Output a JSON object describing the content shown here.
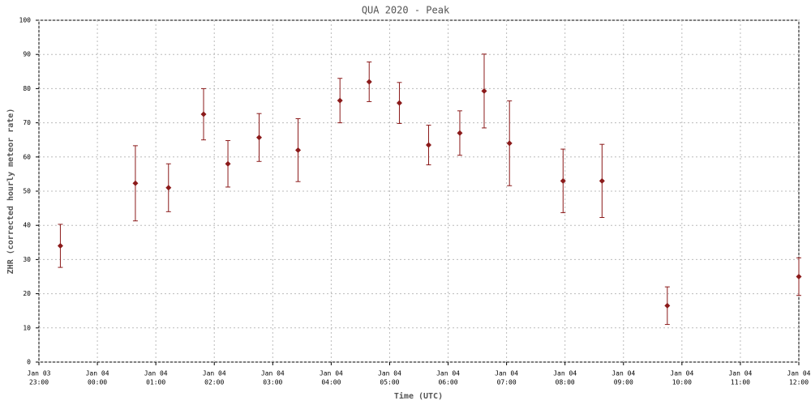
{
  "chart_data": {
    "type": "errorbar",
    "title": "QUA 2020 - Peak",
    "x_label": "Time (UTC)",
    "y_label": "ZHR (corrected hourly meteor rate)",
    "x": [
      "Jan 03 23:22",
      "Jan 04 00:39",
      "Jan 04 01:13",
      "Jan 04 01:49",
      "Jan 04 02:14",
      "Jan 04 02:46",
      "Jan 04 03:26",
      "Jan 04 04:09",
      "Jan 04 04:39",
      "Jan 04 05:10",
      "Jan 04 05:40",
      "Jan 04 06:12",
      "Jan 04 06:37",
      "Jan 04 07:03",
      "Jan 04 07:58",
      "Jan 04 08:38",
      "Jan 04 09:45",
      "Jan 04 12:00"
    ],
    "series": [
      {
        "color": "#8b1a1a",
        "values": [
          34,
          52.3,
          51,
          72.5,
          58,
          65.7,
          62,
          76.5,
          82,
          75.8,
          63.5,
          67,
          79.3,
          64,
          53,
          53,
          16.5,
          25
        ],
        "errors": [
          6.3,
          11,
          7,
          7.5,
          6.8,
          7,
          9.2,
          6.5,
          5.8,
          6,
          5.8,
          6.5,
          10.8,
          12.4,
          9.3,
          10.7,
          5.5,
          5.5
        ]
      }
    ],
    "xlim": [
      "Jan 03 23:00",
      "Jan 04 12:00"
    ],
    "xticks": [
      {
        "date": "Jan 03",
        "time": "23:00"
      },
      {
        "date": "Jan 04",
        "time": "00:00"
      },
      {
        "date": "Jan 04",
        "time": "01:00"
      },
      {
        "date": "Jan 04",
        "time": "02:00"
      },
      {
        "date": "Jan 04",
        "time": "03:00"
      },
      {
        "date": "Jan 04",
        "time": "04:00"
      },
      {
        "date": "Jan 04",
        "time": "05:00"
      },
      {
        "date": "Jan 04",
        "time": "06:00"
      },
      {
        "date": "Jan 04",
        "time": "07:00"
      },
      {
        "date": "Jan 04",
        "time": "08:00"
      },
      {
        "date": "Jan 04",
        "time": "09:00"
      },
      {
        "date": "Jan 04",
        "time": "10:00"
      },
      {
        "date": "Jan 04",
        "time": "11:00"
      },
      {
        "date": "Jan 04",
        "time": "12:00"
      }
    ],
    "ylim": [
      0,
      100
    ],
    "yticks": [
      0,
      10,
      20,
      30,
      40,
      50,
      60,
      70,
      80,
      90,
      100
    ],
    "grid": true
  }
}
